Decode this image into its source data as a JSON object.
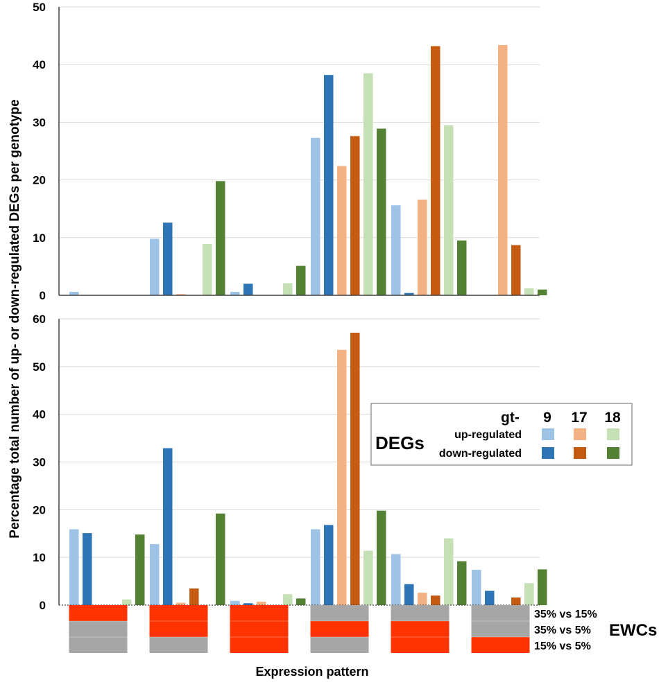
{
  "chart_data": {
    "type": "bar",
    "title": "",
    "ylabel": "Percentage total number of up- or down-regulated DEGs per genotype",
    "xlabel": "Expression pattern",
    "series_names": [
      "gt-9 up",
      "gt-9 down",
      "gt-17 up",
      "gt-17 down",
      "gt-18 up",
      "gt-18 down"
    ],
    "colors": [
      "#9dc3e6",
      "#2e75b6",
      "#f4b183",
      "#c55a11",
      "#c5e0b4",
      "#548235"
    ],
    "panels": [
      {
        "ylim": [
          0,
          50
        ],
        "yticks": [
          "0",
          "10",
          "20",
          "30",
          "40",
          "50"
        ],
        "groups": [
          [
            0.6,
            0,
            0,
            0,
            0,
            0
          ],
          [
            9.8,
            12.6,
            0.2,
            0,
            8.9,
            19.8
          ],
          [
            0.6,
            2.0,
            0,
            0,
            2.1,
            5.1
          ],
          [
            27.3,
            38.2,
            22.4,
            27.6,
            38.5,
            28.9
          ],
          [
            15.6,
            0.4,
            16.6,
            43.2,
            29.5,
            9.5
          ],
          [
            0,
            0,
            43.4,
            8.7,
            1.2,
            1.0
          ]
        ]
      },
      {
        "ylim": [
          0,
          60
        ],
        "yticks": [
          "0",
          "10",
          "20",
          "30",
          "40",
          "50",
          "60"
        ],
        "groups": [
          [
            15.9,
            15.1,
            0,
            0,
            1.2,
            14.8
          ],
          [
            12.8,
            32.9,
            0.5,
            3.5,
            0,
            19.2
          ],
          [
            0.9,
            0.4,
            0.7,
            0,
            2.3,
            1.4
          ],
          [
            15.9,
            16.8,
            53.5,
            57.1,
            11.4,
            19.8
          ],
          [
            10.7,
            4.4,
            2.6,
            2.0,
            14.0,
            9.2
          ],
          [
            7.4,
            3.0,
            0,
            1.6,
            4.6,
            7.5
          ]
        ]
      }
    ],
    "ewc": {
      "title": "EWCs",
      "rows": [
        "35% vs 15%",
        "35% vs 5%",
        "15% vs 5%"
      ],
      "patterns": [
        [
          "red",
          "gray",
          "gray"
        ],
        [
          "red",
          "red",
          "gray"
        ],
        [
          "red",
          "red",
          "red"
        ],
        [
          "gray",
          "red",
          "gray"
        ],
        [
          "gray",
          "red",
          "red"
        ],
        [
          "gray",
          "gray",
          "red"
        ]
      ],
      "red_color": "#ff3300",
      "gray_color": "#a6a6a6"
    },
    "legend": {
      "gt_label": "gt-",
      "genotypes": [
        "9",
        "17",
        "18"
      ],
      "degs_label": "DEGs",
      "up_label": "up-regulated",
      "down_label": "down-regulated"
    }
  }
}
